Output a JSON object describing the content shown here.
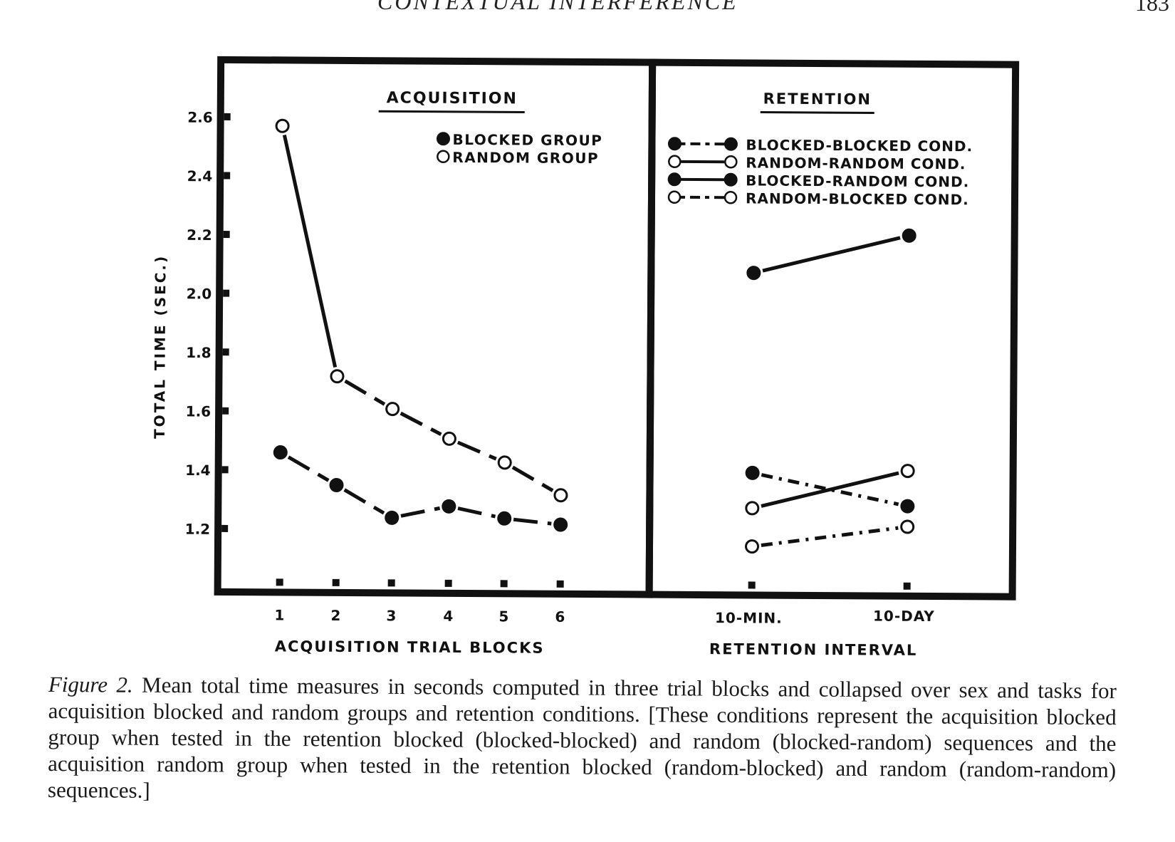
{
  "header": {
    "running_head": "CONTEXTUAL INTERFERENCE",
    "page_number": "183"
  },
  "figure": {
    "caption_label": "Figure 2.",
    "caption_text": "Mean total time measures in seconds computed in three trial blocks and collapsed over sex and tasks for acquisition blocked and random groups and retention conditions. [These conditions represent the acquisition blocked group when tested in the retention blocked (blocked-blocked) and random (blocked-random) sequences and the acquisition random group when tested in the retention blocked (random-blocked) and random (random-random) sequences.]"
  },
  "chart_data": [
    {
      "type": "line",
      "title": "ACQUISITION",
      "xlabel": "ACQUISITION TRIAL BLOCKS",
      "ylabel": "TOTAL TIME (SEC.)",
      "x": [
        "1",
        "2",
        "3",
        "4",
        "5",
        "6"
      ],
      "yticks": [
        "1.2",
        "1.4",
        "1.6",
        "1.8",
        "2.0",
        "2.2",
        "2.4",
        "2.6"
      ],
      "ylim": [
        1.0,
        2.8
      ],
      "legend_position": "top-right",
      "series": [
        {
          "name": "BLOCKED GROUP",
          "marker": "filled",
          "line": "dashed",
          "values": [
            1.46,
            1.35,
            1.24,
            1.28,
            1.24,
            1.22
          ]
        },
        {
          "name": "RANDOM GROUP",
          "marker": "open",
          "line": "solid-then-dashed",
          "values": [
            2.57,
            1.72,
            1.61,
            1.51,
            1.43,
            1.32
          ]
        }
      ]
    },
    {
      "type": "line",
      "title": "RETENTION",
      "xlabel": "RETENTION INTERVAL",
      "ylabel": "TOTAL TIME (SEC.)",
      "x": [
        "10-MIN.",
        "10-DAY"
      ],
      "ylim": [
        1.0,
        2.8
      ],
      "legend_position": "top",
      "series": [
        {
          "name": "BLOCKED-BLOCKED COND.",
          "marker": "filled",
          "line": "dash-dot",
          "values": [
            1.4,
            1.29
          ]
        },
        {
          "name": "RANDOM-RANDOM COND.",
          "marker": "open",
          "line": "solid",
          "values": [
            1.28,
            1.41
          ]
        },
        {
          "name": "BLOCKED-RANDOM COND.",
          "marker": "filled",
          "line": "solid",
          "values": [
            2.08,
            2.21
          ]
        },
        {
          "name": "RANDOM-BLOCKED COND.",
          "marker": "open",
          "line": "dash-dot",
          "values": [
            1.15,
            1.22
          ]
        }
      ]
    }
  ]
}
